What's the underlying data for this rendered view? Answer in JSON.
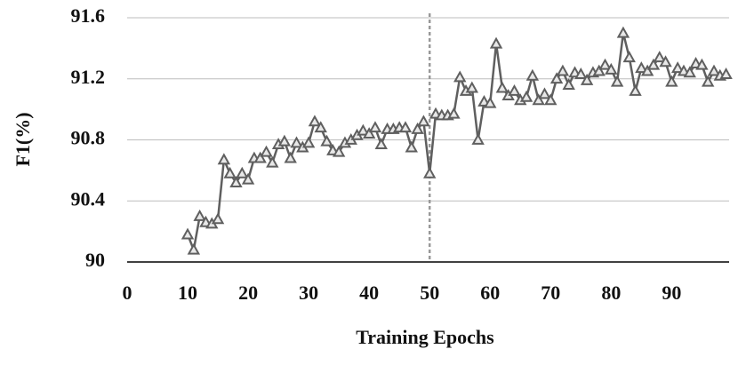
{
  "chart_data": {
    "type": "line",
    "xlabel": "Training Epochs",
    "ylabel": "F1(%)",
    "x": [
      10,
      11,
      12,
      13,
      14,
      15,
      16,
      17,
      18,
      19,
      20,
      21,
      22,
      23,
      24,
      25,
      26,
      27,
      28,
      29,
      30,
      31,
      32,
      33,
      34,
      35,
      36,
      37,
      38,
      39,
      40,
      41,
      42,
      43,
      44,
      45,
      46,
      47,
      48,
      49,
      50,
      51,
      52,
      53,
      54,
      55,
      56,
      57,
      58,
      59,
      60,
      61,
      62,
      63,
      64,
      65,
      66,
      67,
      68,
      69,
      70,
      71,
      72,
      73,
      74,
      75,
      76,
      77,
      78,
      79,
      80,
      81,
      82,
      83,
      84,
      85,
      86,
      87,
      88,
      89,
      90,
      91,
      92,
      93,
      94,
      95,
      96,
      97,
      98,
      99
    ],
    "values": [
      90.18,
      90.08,
      90.3,
      90.26,
      90.25,
      90.28,
      90.67,
      90.58,
      90.52,
      90.58,
      90.54,
      90.68,
      90.68,
      90.72,
      90.65,
      90.77,
      90.79,
      90.68,
      90.78,
      90.75,
      90.78,
      90.92,
      90.88,
      90.79,
      90.73,
      90.72,
      90.78,
      90.8,
      90.83,
      90.86,
      90.84,
      90.88,
      90.77,
      90.87,
      90.87,
      90.88,
      90.88,
      90.75,
      90.87,
      90.92,
      90.58,
      90.97,
      90.96,
      90.96,
      90.97,
      91.21,
      91.12,
      91.14,
      90.8,
      91.05,
      91.04,
      91.43,
      91.14,
      91.09,
      91.12,
      91.06,
      91.08,
      91.22,
      91.06,
      91.1,
      91.06,
      91.2,
      91.25,
      91.16,
      91.24,
      91.23,
      91.19,
      91.24,
      91.25,
      91.29,
      91.26,
      91.18,
      91.5,
      91.34,
      91.12,
      91.27,
      91.25,
      91.29,
      91.34,
      91.31,
      91.18,
      91.27,
      91.25,
      91.24,
      91.3,
      91.29,
      91.18,
      91.25,
      91.22,
      91.23
    ],
    "color": "#5f5f5f",
    "xlim": [
      0,
      99.5
    ],
    "xticks": [
      0,
      10,
      20,
      30,
      40,
      50,
      60,
      70,
      80,
      90
    ],
    "ylim": [
      90,
      91.6
    ],
    "yticks": [
      90,
      90.4,
      90.8,
      91.2,
      91.6
    ],
    "vline": 50,
    "grid": true
  }
}
